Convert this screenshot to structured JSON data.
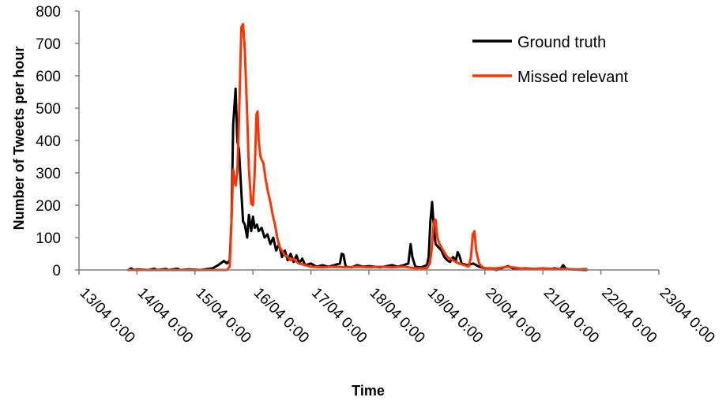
{
  "chart_data": {
    "type": "line",
    "title": "",
    "xlabel": "Time",
    "ylabel": "Number of Tweets per hour",
    "ylim": [
      0,
      800
    ],
    "yticks": [
      "0",
      "100",
      "200",
      "300",
      "400",
      "500",
      "600",
      "700",
      "800"
    ],
    "xticks": [
      "13/04 0:00",
      "14/04 0:00",
      "15/04 0:00",
      "16/04 0:00",
      "17/04 0:00",
      "18/04 0:00",
      "19/04 0:00",
      "20/04 0:00",
      "21/04 0:00",
      "22/04 0:00",
      "23/04 0:00"
    ],
    "xlim_days": [
      13,
      23
    ],
    "grid": false,
    "legend_position": "top-right",
    "series": [
      {
        "name": "Ground truth",
        "color": "#000000",
        "points": [
          [
            13.85,
            0
          ],
          [
            13.9,
            5
          ],
          [
            13.95,
            0
          ],
          [
            14.0,
            2
          ],
          [
            14.2,
            0
          ],
          [
            14.3,
            4
          ],
          [
            14.35,
            0
          ],
          [
            14.5,
            3
          ],
          [
            14.55,
            0
          ],
          [
            14.7,
            4
          ],
          [
            14.75,
            0
          ],
          [
            14.9,
            2
          ],
          [
            15.1,
            0
          ],
          [
            15.3,
            5
          ],
          [
            15.4,
            15
          ],
          [
            15.5,
            28
          ],
          [
            15.55,
            20
          ],
          [
            15.6,
            30
          ],
          [
            15.63,
            150
          ],
          [
            15.66,
            450
          ],
          [
            15.7,
            560
          ],
          [
            15.73,
            400
          ],
          [
            15.76,
            370
          ],
          [
            15.8,
            240
          ],
          [
            15.83,
            150
          ],
          [
            15.86,
            140
          ],
          [
            15.9,
            100
          ],
          [
            15.93,
            170
          ],
          [
            15.97,
            120
          ],
          [
            16.0,
            165
          ],
          [
            16.03,
            130
          ],
          [
            16.07,
            140
          ],
          [
            16.1,
            120
          ],
          [
            16.15,
            130
          ],
          [
            16.2,
            100
          ],
          [
            16.25,
            110
          ],
          [
            16.3,
            80
          ],
          [
            16.35,
            100
          ],
          [
            16.4,
            60
          ],
          [
            16.45,
            80
          ],
          [
            16.5,
            40
          ],
          [
            16.55,
            60
          ],
          [
            16.6,
            30
          ],
          [
            16.65,
            50
          ],
          [
            16.7,
            25
          ],
          [
            16.75,
            45
          ],
          [
            16.8,
            20
          ],
          [
            16.85,
            35
          ],
          [
            16.9,
            15
          ],
          [
            17.0,
            20
          ],
          [
            17.1,
            10
          ],
          [
            17.2,
            15
          ],
          [
            17.3,
            10
          ],
          [
            17.4,
            15
          ],
          [
            17.5,
            20
          ],
          [
            17.53,
            50
          ],
          [
            17.56,
            48
          ],
          [
            17.6,
            10
          ],
          [
            17.7,
            8
          ],
          [
            17.8,
            15
          ],
          [
            17.9,
            10
          ],
          [
            18.0,
            12
          ],
          [
            18.2,
            8
          ],
          [
            18.4,
            15
          ],
          [
            18.5,
            10
          ],
          [
            18.6,
            15
          ],
          [
            18.68,
            20
          ],
          [
            18.72,
            80
          ],
          [
            18.75,
            40
          ],
          [
            18.8,
            10
          ],
          [
            18.9,
            8
          ],
          [
            19.0,
            15
          ],
          [
            19.03,
            40
          ],
          [
            19.06,
            150
          ],
          [
            19.09,
            210
          ],
          [
            19.12,
            130
          ],
          [
            19.15,
            80
          ],
          [
            19.2,
            70
          ],
          [
            19.25,
            60
          ],
          [
            19.3,
            40
          ],
          [
            19.35,
            30
          ],
          [
            19.4,
            25
          ],
          [
            19.45,
            40
          ],
          [
            19.5,
            30
          ],
          [
            19.53,
            55
          ],
          [
            19.56,
            45
          ],
          [
            19.6,
            20
          ],
          [
            19.7,
            15
          ],
          [
            19.8,
            20
          ],
          [
            19.9,
            10
          ],
          [
            20.0,
            5
          ],
          [
            20.1,
            5
          ],
          [
            20.2,
            0
          ],
          [
            20.4,
            12
          ],
          [
            20.5,
            3
          ],
          [
            20.7,
            5
          ],
          [
            20.9,
            2
          ],
          [
            21.0,
            5
          ],
          [
            21.1,
            2
          ],
          [
            21.2,
            5
          ],
          [
            21.3,
            2
          ],
          [
            21.35,
            15
          ],
          [
            21.4,
            3
          ],
          [
            21.5,
            2
          ],
          [
            21.6,
            1
          ],
          [
            21.75,
            0
          ]
        ]
      },
      {
        "name": "Missed relevant",
        "color": "#ff3300",
        "points": [
          [
            13.85,
            0
          ],
          [
            14.5,
            0
          ],
          [
            15.0,
            0
          ],
          [
            15.4,
            0
          ],
          [
            15.55,
            0
          ],
          [
            15.6,
            10
          ],
          [
            15.63,
            150
          ],
          [
            15.66,
            310
          ],
          [
            15.7,
            260
          ],
          [
            15.73,
            300
          ],
          [
            15.76,
            470
          ],
          [
            15.8,
            750
          ],
          [
            15.83,
            760
          ],
          [
            15.86,
            680
          ],
          [
            15.9,
            480
          ],
          [
            15.93,
            310
          ],
          [
            15.97,
            205
          ],
          [
            16.0,
            200
          ],
          [
            16.03,
            300
          ],
          [
            16.06,
            480
          ],
          [
            16.08,
            490
          ],
          [
            16.1,
            400
          ],
          [
            16.13,
            350
          ],
          [
            16.18,
            330
          ],
          [
            16.22,
            280
          ],
          [
            16.26,
            240
          ],
          [
            16.3,
            210
          ],
          [
            16.34,
            170
          ],
          [
            16.38,
            140
          ],
          [
            16.42,
            100
          ],
          [
            16.46,
            70
          ],
          [
            16.5,
            60
          ],
          [
            16.55,
            45
          ],
          [
            16.6,
            40
          ],
          [
            16.65,
            30
          ],
          [
            16.7,
            35
          ],
          [
            16.75,
            25
          ],
          [
            16.8,
            20
          ],
          [
            16.9,
            15
          ],
          [
            17.0,
            10
          ],
          [
            17.2,
            8
          ],
          [
            17.4,
            10
          ],
          [
            17.6,
            8
          ],
          [
            17.8,
            10
          ],
          [
            18.0,
            8
          ],
          [
            18.2,
            10
          ],
          [
            18.4,
            8
          ],
          [
            18.6,
            10
          ],
          [
            18.8,
            5
          ],
          [
            18.9,
            5
          ],
          [
            19.0,
            5
          ],
          [
            19.05,
            20
          ],
          [
            19.08,
            60
          ],
          [
            19.12,
            150
          ],
          [
            19.15,
            155
          ],
          [
            19.18,
            100
          ],
          [
            19.22,
            80
          ],
          [
            19.28,
            60
          ],
          [
            19.35,
            40
          ],
          [
            19.45,
            30
          ],
          [
            19.55,
            20
          ],
          [
            19.65,
            15
          ],
          [
            19.72,
            10
          ],
          [
            19.76,
            40
          ],
          [
            19.79,
            110
          ],
          [
            19.82,
            120
          ],
          [
            19.85,
            60
          ],
          [
            19.9,
            20
          ],
          [
            19.95,
            10
          ],
          [
            20.0,
            5
          ],
          [
            20.2,
            5
          ],
          [
            20.4,
            10
          ],
          [
            20.6,
            5
          ],
          [
            20.8,
            3
          ],
          [
            21.0,
            5
          ],
          [
            21.2,
            3
          ],
          [
            21.4,
            3
          ],
          [
            21.6,
            2
          ],
          [
            21.75,
            3
          ]
        ]
      }
    ]
  }
}
